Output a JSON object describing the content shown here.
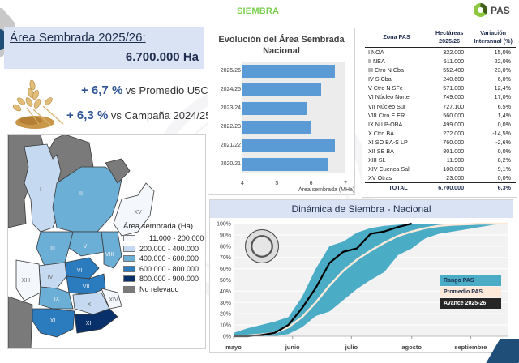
{
  "header": {
    "title": "SIEMBRA",
    "logo_text": "PAS"
  },
  "summary": {
    "area_label": "Área Sembrada 2025/26:",
    "area_value": "6.700.000 Ha",
    "variations": [
      {
        "pct": "+ 6,7 %",
        "text": "vs Promedio U5C"
      },
      {
        "pct": "+ 6,3 %",
        "text": "vs Campaña 2024/25"
      }
    ]
  },
  "map": {
    "legend_title": "Área sembrada (Ha)",
    "legend": [
      {
        "label": "11.000 - 200.000",
        "color": "#f4f8fd"
      },
      {
        "label": "200.000 - 400.000",
        "color": "#c5daf0"
      },
      {
        "label": "400.000 - 600.000",
        "color": "#6baed6"
      },
      {
        "label": "600.000 - 800.000",
        "color": "#2b7bbf"
      },
      {
        "label": "800.000 - 900.000",
        "color": "#08306b"
      },
      {
        "label": "No relevado",
        "color": "#7a7a7a"
      }
    ],
    "zone_labels": [
      "I",
      "II",
      "III",
      "IV",
      "V",
      "VI",
      "VII",
      "VIII",
      "IX",
      "X",
      "XI",
      "XII",
      "XIII",
      "XIV",
      "XV"
    ]
  },
  "chart_data": [
    {
      "type": "bar",
      "title": "Evolución del Área Sembrada Nacional",
      "categories": [
        "2025/26",
        "2024/25",
        "2023/24",
        "2022/23",
        "2021/22",
        "2020/21"
      ],
      "values": [
        6.7,
        6.3,
        5.9,
        6.0,
        6.7,
        6.5
      ],
      "xlabel": "Área sembrada (MHa)",
      "xlim": [
        4,
        7
      ],
      "xticks": [
        "4",
        "5",
        "6",
        "7"
      ],
      "color": "#5b9bd5"
    },
    {
      "type": "area",
      "title": "Dinámica de Siembra - Nacional",
      "x_labels": [
        "mayo",
        "junio",
        "julio",
        "agosto",
        "septiembre"
      ],
      "yticks": [
        "0%",
        "10%",
        "20%",
        "30%",
        "40%",
        "50%",
        "60%",
        "70%",
        "80%",
        "90%",
        "100%"
      ],
      "ylim": [
        0,
        100
      ],
      "x_unit": "weeks since 1 May",
      "series": [
        {
          "name": "Rango PAS",
          "kind": "band",
          "color": "#4bacc6",
          "x": [
            0,
            1,
            2,
            3,
            4,
            5,
            6,
            7,
            8,
            9,
            10,
            11,
            12,
            13,
            14,
            15,
            16,
            17,
            18,
            19,
            20
          ],
          "low": [
            0,
            0,
            0,
            0,
            2,
            8,
            18,
            22,
            32,
            42,
            50,
            57,
            72,
            78,
            87,
            91,
            93,
            95,
            97,
            99,
            100
          ],
          "high": [
            3,
            7,
            10,
            13,
            17,
            35,
            60,
            80,
            84,
            92,
            96,
            98,
            99,
            100,
            100,
            100,
            100,
            100,
            100,
            100,
            100
          ]
        },
        {
          "name": "Promedio PAS",
          "kind": "line",
          "color": "#fde9d9",
          "x": [
            0,
            1,
            2,
            3,
            4,
            5,
            6,
            7,
            8,
            9,
            10,
            11,
            12,
            13,
            14,
            15,
            16,
            17,
            18,
            19,
            20
          ],
          "y": [
            0,
            0.5,
            1.5,
            3,
            8,
            17,
            30,
            45,
            58,
            68,
            76,
            83,
            89,
            93,
            96,
            98,
            99,
            99.5,
            100,
            100,
            100
          ]
        },
        {
          "name": "Avance 2025-26",
          "kind": "line",
          "color": "#000000",
          "x": [
            0,
            1,
            2,
            3,
            4,
            5,
            6,
            7,
            8,
            9,
            10,
            11,
            12,
            13
          ],
          "y": [
            0,
            0,
            1,
            3,
            10,
            25,
            43,
            65,
            75,
            78,
            91,
            93,
            97,
            100
          ]
        }
      ],
      "legend": [
        "Rango PAS",
        "Promedio PAS",
        "Avance 2025-26"
      ],
      "legend_position": "right"
    }
  ],
  "table": {
    "headers": [
      "Zona PAS",
      "Hectáreas 2025/26",
      "Variación Interanual (%)"
    ],
    "rows": [
      [
        "I NOA",
        "322.000",
        "15,0%"
      ],
      [
        "II NEA",
        "511.000",
        "22,0%"
      ],
      [
        "III Ctro N Cba",
        "552.400",
        "23,0%"
      ],
      [
        "IV S Cba",
        "240.600",
        "6,0%"
      ],
      [
        "V Ctro N SFe",
        "571.000",
        "12,4%"
      ],
      [
        "VI Núcleo Norte",
        "749.000",
        "17,0%"
      ],
      [
        "VII Núcleo Sur",
        "727.100",
        "6,5%"
      ],
      [
        "VIII Ctro E ER",
        "560.000",
        "1,4%"
      ],
      [
        "IX N LP-OBA",
        "499.000",
        "0,0%"
      ],
      [
        "X Ctro BA",
        "272.000",
        "-14,5%"
      ],
      [
        "XI SO BA-S LP",
        "760.000",
        "-2,6%"
      ],
      [
        "XII SE BA",
        "801.000",
        "0,0%"
      ],
      [
        "XIII SL",
        "11.900",
        "8,2%"
      ],
      [
        "XIV Cuenca Sal",
        "100.000",
        "-9,1%"
      ],
      [
        "XV Otras",
        "23.000",
        "0,0%"
      ]
    ],
    "total": [
      "TOTAL",
      "6.700.000",
      "6,3%"
    ]
  }
}
